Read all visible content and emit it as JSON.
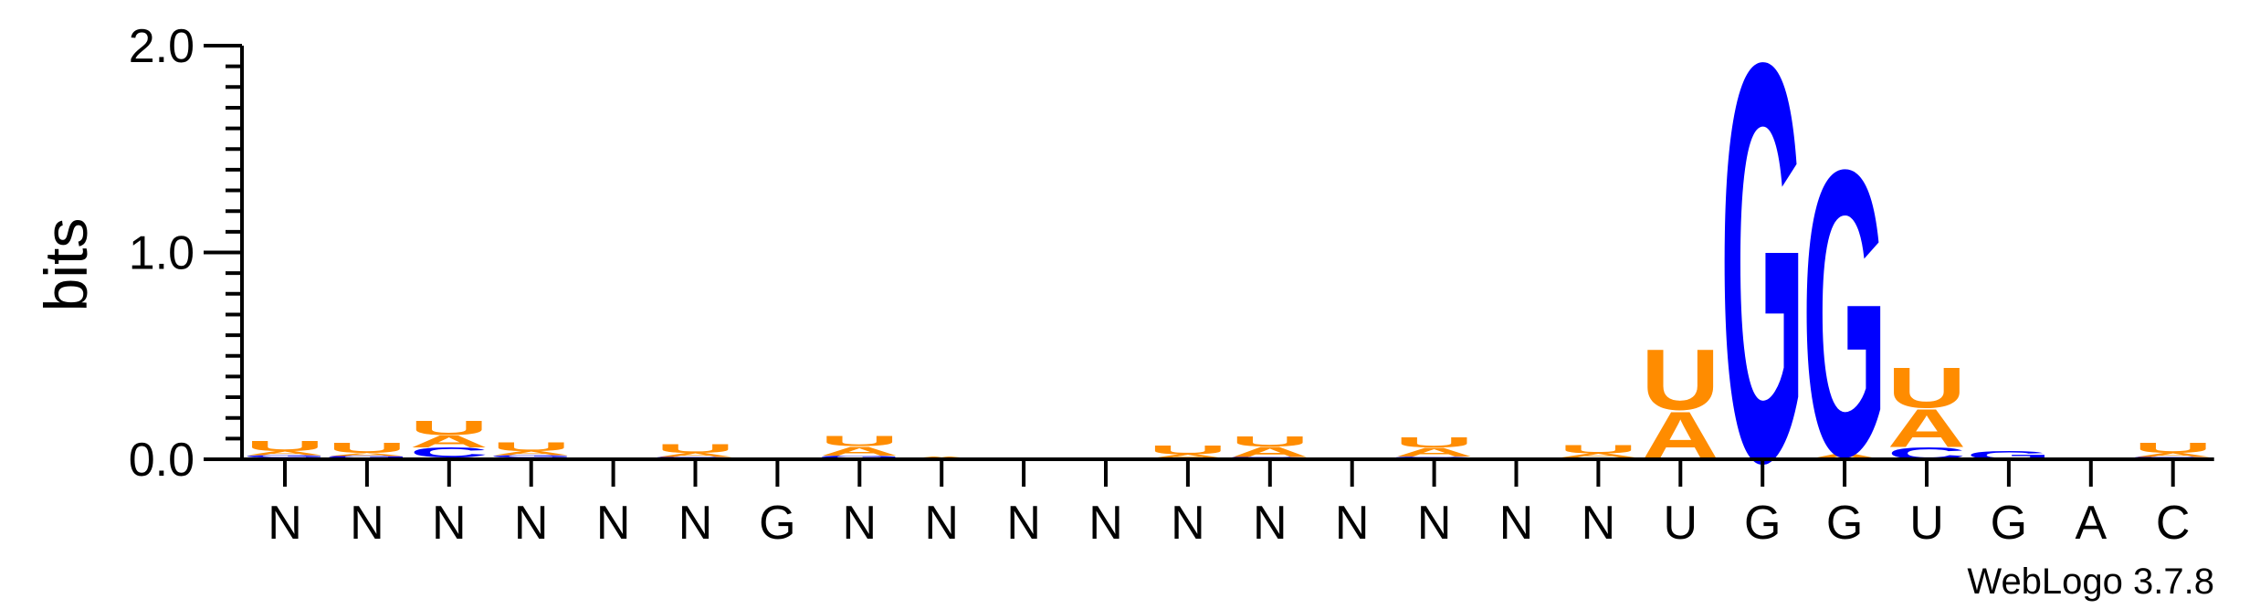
{
  "chart_data": {
    "type": "sequence-logo",
    "ylabel": "bits",
    "ylim": [
      0,
      2.0
    ],
    "yticks": [
      "0.0",
      "1.0",
      "2.0"
    ],
    "positions": [
      "N",
      "N",
      "N",
      "N",
      "N",
      "N",
      "G",
      "N",
      "N",
      "N",
      "N",
      "N",
      "N",
      "N",
      "N",
      "N",
      "N",
      "U",
      "G",
      "G",
      "U",
      "G",
      "A",
      "C"
    ],
    "colors": {
      "A": "#ff8c00",
      "U": "#ff8c00",
      "G": "#0000ff",
      "C": "#0000ff"
    },
    "stacks": [
      [
        [
          "C",
          0.008
        ],
        [
          "G",
          0.012
        ],
        [
          "A",
          0.02
        ],
        [
          "U",
          0.05
        ]
      ],
      [
        [
          "C",
          0.006
        ],
        [
          "G",
          0.01
        ],
        [
          "A",
          0.015
        ],
        [
          "U",
          0.05
        ]
      ],
      [
        [
          "G",
          0.008
        ],
        [
          "C",
          0.05
        ],
        [
          "A",
          0.06
        ],
        [
          "U",
          0.07
        ]
      ],
      [
        [
          "C",
          0.008
        ],
        [
          "G",
          0.012
        ],
        [
          "A",
          0.02
        ],
        [
          "U",
          0.045
        ]
      ],
      [],
      [
        [
          "C",
          0.004
        ],
        [
          "G",
          0.008
        ],
        [
          "A",
          0.02
        ],
        [
          "U",
          0.045
        ]
      ],
      [],
      [
        [
          "C",
          0.006
        ],
        [
          "G",
          0.012
        ],
        [
          "A",
          0.045
        ],
        [
          "U",
          0.05
        ]
      ],
      [
        [
          "A",
          0.015
        ]
      ],
      [],
      [],
      [
        [
          "G",
          0.005
        ],
        [
          "A",
          0.02
        ],
        [
          "U",
          0.045
        ]
      ],
      [
        [
          "C",
          0.004
        ],
        [
          "G",
          0.008
        ],
        [
          "A",
          0.05
        ],
        [
          "U",
          0.05
        ]
      ],
      [],
      [
        [
          "C",
          0.005
        ],
        [
          "G",
          0.008
        ],
        [
          "A",
          0.045
        ],
        [
          "U",
          0.05
        ]
      ],
      [],
      [
        [
          "G",
          0.008
        ],
        [
          "A",
          0.02
        ],
        [
          "U",
          0.04
        ]
      ],
      [
        [
          "A",
          0.24
        ],
        [
          "U",
          0.3
        ]
      ],
      [
        [
          "G",
          1.98
        ]
      ],
      [
        [
          "A",
          0.025
        ],
        [
          "G",
          1.42
        ]
      ],
      [
        [
          "C",
          0.06
        ],
        [
          "A",
          0.19
        ],
        [
          "U",
          0.2
        ]
      ],
      [
        [
          "G",
          0.04
        ]
      ],
      [
        [
          "A",
          0.004
        ]
      ],
      [
        [
          "C",
          0.004
        ],
        [
          "G",
          0.008
        ],
        [
          "A",
          0.02
        ],
        [
          "U",
          0.05
        ]
      ]
    ]
  },
  "credit": "WebLogo 3.7.8"
}
